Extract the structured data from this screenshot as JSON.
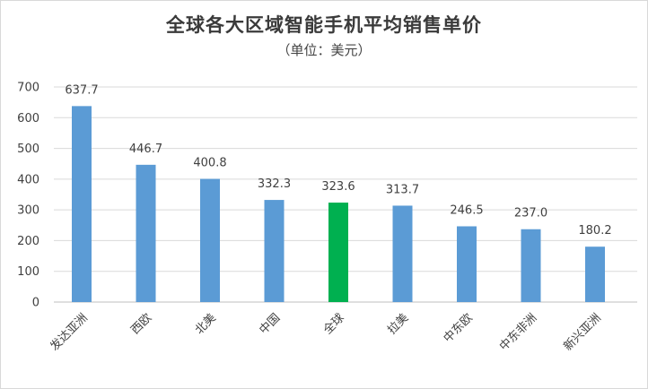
{
  "chart_data": {
    "type": "bar",
    "title": "全球各大区域智能手机平均销售单价",
    "subtitle": "（单位：美元）",
    "categories": [
      "发达亚洲",
      "西欧",
      "北美",
      "中国",
      "全球",
      "拉美",
      "中东欧",
      "中东非洲",
      "新兴亚洲"
    ],
    "values": [
      637.7,
      446.7,
      400.8,
      332.3,
      323.6,
      313.7,
      246.5,
      237.0,
      180.2
    ],
    "value_labels": [
      "637.7",
      "446.7",
      "400.8",
      "332.3",
      "323.6",
      "313.7",
      "246.5",
      "237.0",
      "180.2"
    ],
    "ylim": [
      0,
      700
    ],
    "yticks": [
      "0",
      "100",
      "200",
      "300",
      "400",
      "500",
      "600",
      "700"
    ],
    "grid": true,
    "highlight_category": "全球",
    "colors": {
      "bar": "#5b9bd5",
      "highlight": "#00b050",
      "grid": "#d9d9d9",
      "axis": "#bfbfbf"
    }
  }
}
